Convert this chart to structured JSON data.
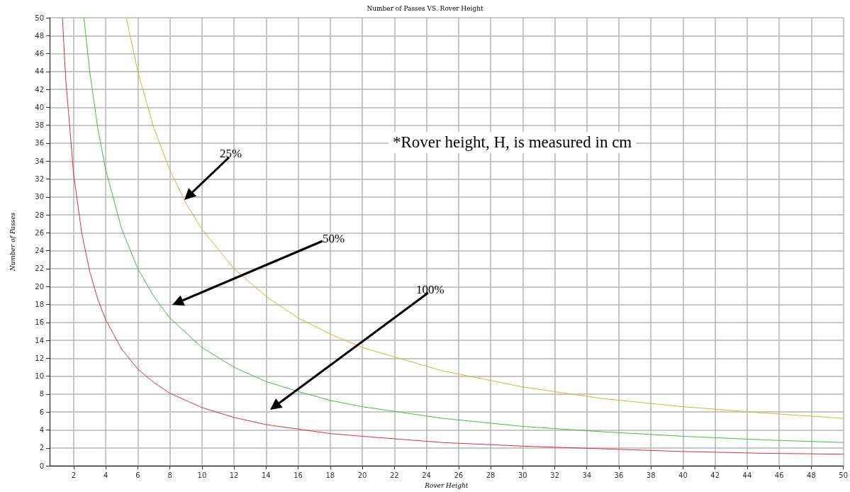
{
  "chart_data": {
    "type": "line",
    "title": "Number of Passes VS. Rover Height",
    "xlabel": "Rover Height",
    "ylabel": "Number of Passes",
    "xlim": [
      0.5,
      50
    ],
    "xticks": [
      2,
      4,
      6,
      8,
      10,
      12,
      14,
      16,
      18,
      20,
      22,
      24,
      26,
      28,
      30,
      32,
      34,
      36,
      38,
      40,
      42,
      44,
      46,
      48,
      50
    ],
    "ylim": [
      0,
      50
    ],
    "yticks": [
      0,
      2,
      4,
      6,
      8,
      10,
      12,
      14,
      16,
      18,
      20,
      22,
      24,
      26,
      28,
      30,
      32,
      34,
      36,
      38,
      40,
      42,
      44,
      46,
      48,
      50
    ],
    "grid": true,
    "marker": "none",
    "line_style": "solid",
    "series": [
      {
        "color": "#e03030",
        "x": [
          1.3,
          1.5,
          2,
          2.5,
          3,
          3.5,
          4,
          5,
          6,
          7,
          8,
          10,
          12,
          14,
          16,
          18,
          20,
          25,
          30,
          35,
          40,
          45,
          50
        ],
        "values": [
          50,
          43.3,
          32.5,
          26,
          21.7,
          18.6,
          16.3,
          13,
          10.8,
          9.3,
          8.1,
          6.5,
          5.4,
          4.6,
          4.1,
          3.6,
          3.3,
          2.6,
          2.2,
          1.9,
          1.6,
          1.4,
          1.3
        ]
      },
      {
        "color": "#40c040",
        "x": [
          2.64,
          3,
          3.5,
          4,
          5,
          6,
          7,
          8,
          10,
          12,
          14,
          16,
          18,
          20,
          25,
          30,
          35,
          40,
          45,
          50
        ],
        "values": [
          50,
          44,
          37.7,
          33,
          26.4,
          22,
          18.9,
          16.5,
          13.2,
          11,
          9.4,
          8.3,
          7.3,
          6.6,
          5.3,
          4.4,
          3.8,
          3.3,
          2.9,
          2.6
        ]
      },
      {
        "color": "#e0b030",
        "x": [
          5.28,
          6,
          7,
          8,
          9,
          10,
          12,
          14,
          16,
          18,
          20,
          25,
          30,
          35,
          40,
          45,
          50
        ],
        "values": [
          50,
          44,
          37.7,
          33,
          29.3,
          26.4,
          22,
          18.9,
          16.5,
          14.7,
          13.2,
          10.6,
          8.8,
          7.5,
          6.6,
          5.9,
          5.3
        ]
      }
    ],
    "annotations": [
      "25%",
      "50%",
      "100%",
      "*Rover height, H, is measured in cm"
    ]
  }
}
